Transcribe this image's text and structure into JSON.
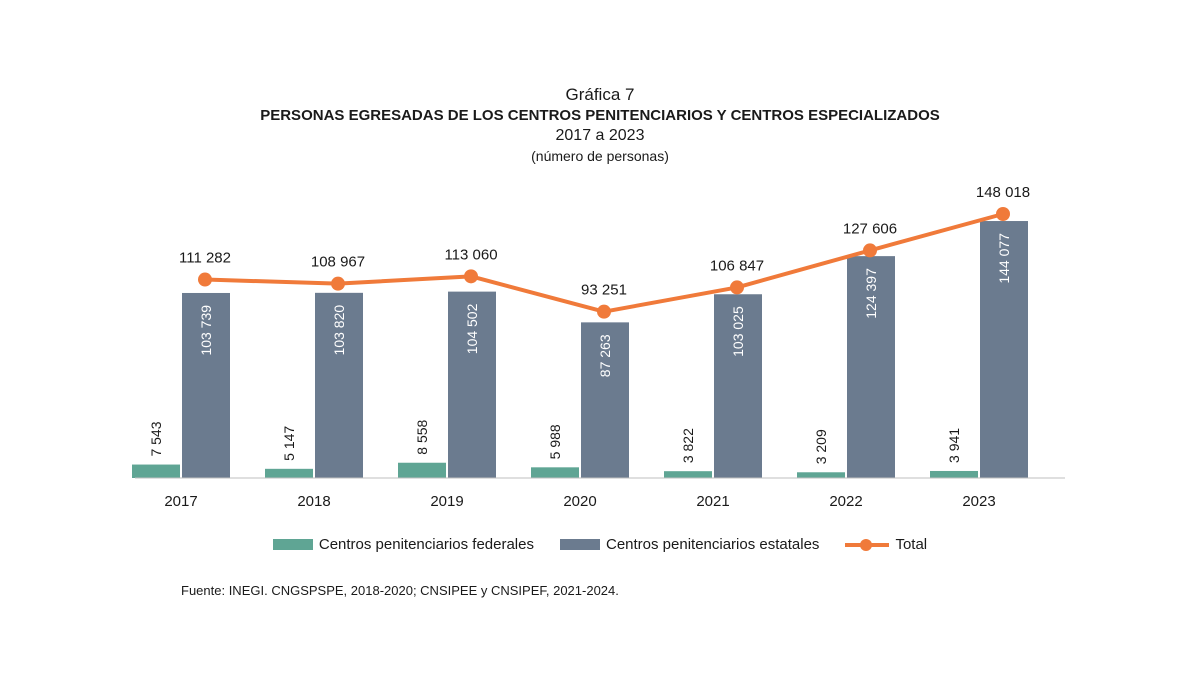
{
  "header": {
    "figure_label": "Gráfica 7",
    "title": "PERSONAS EGRESADAS DE LOS CENTROS PENITENCIARIOS Y CENTROS ESPECIALIZADOS",
    "period": "2017 a 2023",
    "unit": "(número de personas)"
  },
  "source": "Fuente: INEGI. CNGSPSPE, 2018-2020; CNSIPEE y CNSIPEF, 2021-2024.",
  "colors": {
    "federales": "#5FA594",
    "estatales": "#6B7B8F",
    "total": "#F07A3A"
  },
  "chart_data": {
    "type": "bar",
    "categories": [
      "2017",
      "2018",
      "2019",
      "2020",
      "2021",
      "2022",
      "2023"
    ],
    "series": [
      {
        "name": "Centros penitenciarios federales",
        "kind": "bar",
        "values": [
          7543,
          5147,
          8558,
          5988,
          3822,
          3209,
          3941
        ],
        "labels": [
          "7 543",
          "5 147",
          "8 558",
          "5 988",
          "3 822",
          "3 209",
          "3 941"
        ]
      },
      {
        "name": "Centros penitenciarios estatales",
        "kind": "bar",
        "values": [
          103739,
          103820,
          104502,
          87263,
          103025,
          124397,
          144077
        ],
        "labels": [
          "103 739",
          "103 820",
          "104 502",
          "87 263",
          "103 025",
          "124 397",
          "144 077"
        ]
      },
      {
        "name": "Total",
        "kind": "line",
        "values": [
          111282,
          108967,
          113060,
          93251,
          106847,
          127606,
          148018
        ],
        "labels": [
          "111 282",
          "108 967",
          "113 060",
          "93 251",
          "106 847",
          "127 606",
          "148 018"
        ]
      }
    ],
    "ylim": [
      0,
      152000
    ],
    "grid": false,
    "legend_position": "bottom"
  }
}
